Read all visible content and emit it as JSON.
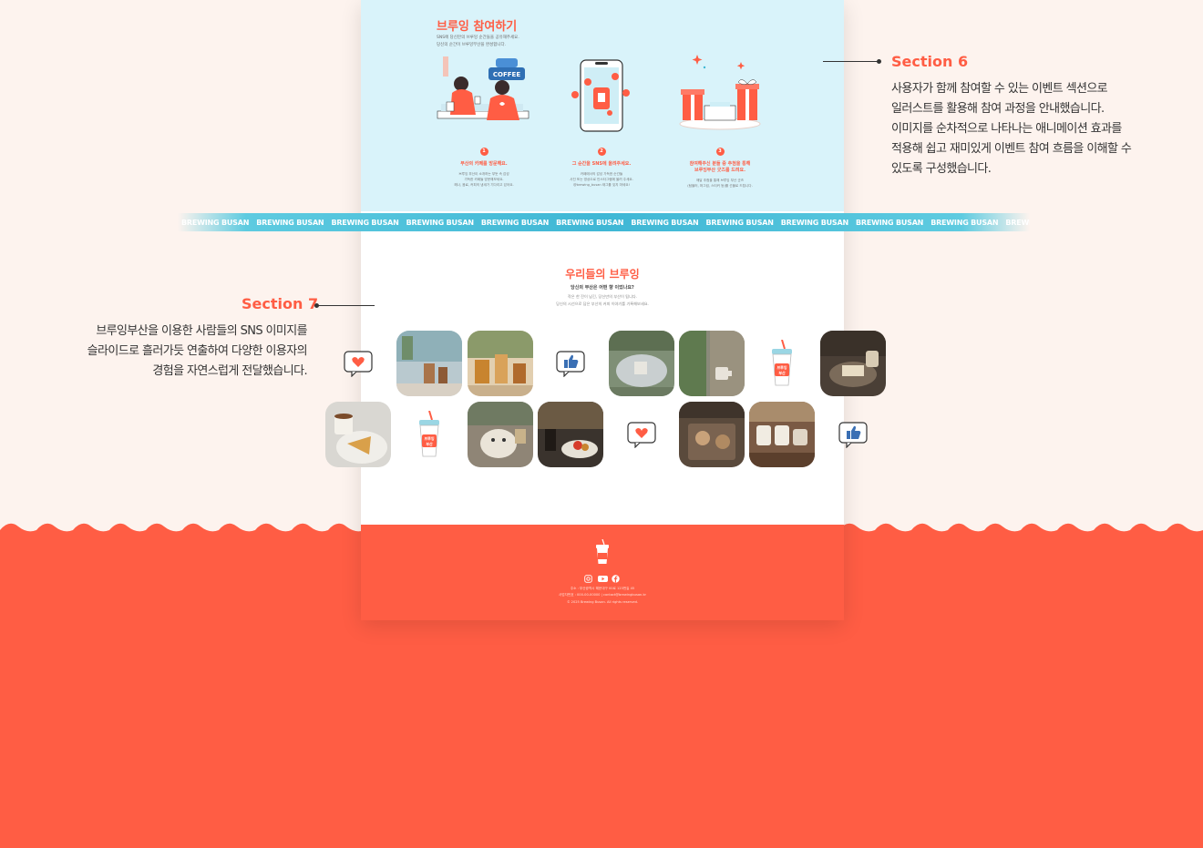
{
  "section6": {
    "title": "브루잉 참여하기",
    "desc_line1": "SNS에 당신만의 브루잉 순간들을 공유해주세요.",
    "desc_line2": "당신의 순간이 브루잉부산을 완성합니다.",
    "steps": [
      {
        "num": "1",
        "title": "부산의 카페를 방문해요.",
        "desc": [
          "브루잉 부산이 소개하는 부둣 속 감성",
          "가득한 카페들 방문해보세요.",
          "해나, 음료, 커피의 냄새가 기다리고 있어요."
        ]
      },
      {
        "num": "2",
        "title": "그 순간을 SNS에 올려주세요.",
        "desc": [
          "카페에서의 감성 가득한 순간들",
          "사진 또는 영상으로 인스타그램에 올려 주세요.",
          "@brewing_busan 태그를 잊지 마세요!"
        ]
      },
      {
        "num": "3",
        "title": "참여해주신 분들 중 추첨을 통해",
        "title2": "브루잉부산 굿즈를 드려요.",
        "desc": [
          "매달 추첨을 통해 브루잉 부산 굿즈",
          "(텀블러, 머그컵, 스티커 등)를 선물로 드립니다."
        ]
      }
    ],
    "illustration_text": "COFFEE"
  },
  "band": {
    "words": [
      "BREWING BUSAN",
      "BREWING BUSAN",
      "BREWING BUSAN",
      "BREWING BUSAN",
      "BREWING BUSAN",
      "BREWING BUSAN",
      "BREWING BUSAN",
      "BREWING BUSAN",
      "BREWING BUSAN",
      "BREWING BUSAN",
      "BREWING BUSAN",
      "BREWING BUSAN",
      "BREWING BUSAN"
    ],
    "color": "#3fb7d5"
  },
  "section7": {
    "title": "우리들의 브루잉",
    "subtitle": "당신의 부산은 어떤 향 이었나요?",
    "desc_line1": "작은 한 잔이 남긴, 당신만의 부산이 됩니다.",
    "desc_line2": "당신의 시선으로 담은 부산의 커피 이야기를 기록해보세요."
  },
  "cup_label": "브루잉\n부산",
  "footer": {
    "address": "주소 : 부산광역시 해운대구 00로 123번길 45",
    "contact": "사업자번호 : 000-00-00000  |  contact@brewingbusan.kr",
    "copyright": "© 2025 Brewing Busan. All rights reserved."
  },
  "annotations": {
    "section6": {
      "title": "Section 6",
      "lines": [
        "사용자가 함께 참여할 수 있는 이벤트 섹션으로",
        "일러스트를 활용해 참여 과정을 안내했습니다.",
        "이미지를 순차적으로 나타나는 애니메이션 효과를",
        "적용해 쉽고 재미있게 이벤트 참여 흐름을 이해할 수",
        "있도록 구성했습니다."
      ]
    },
    "section7": {
      "title": "Section 7",
      "lines": [
        "브루잉부산을 이용한 사람들의 SNS 이미지를",
        "슬라이드로 흘러가듯 연출하여 다양한 이용자의",
        "경험을 자연스럽게 전달했습니다."
      ]
    }
  },
  "colors": {
    "accent": "#ff5d44",
    "sky": "#d9f3fa",
    "background": "#fdf3ee"
  }
}
